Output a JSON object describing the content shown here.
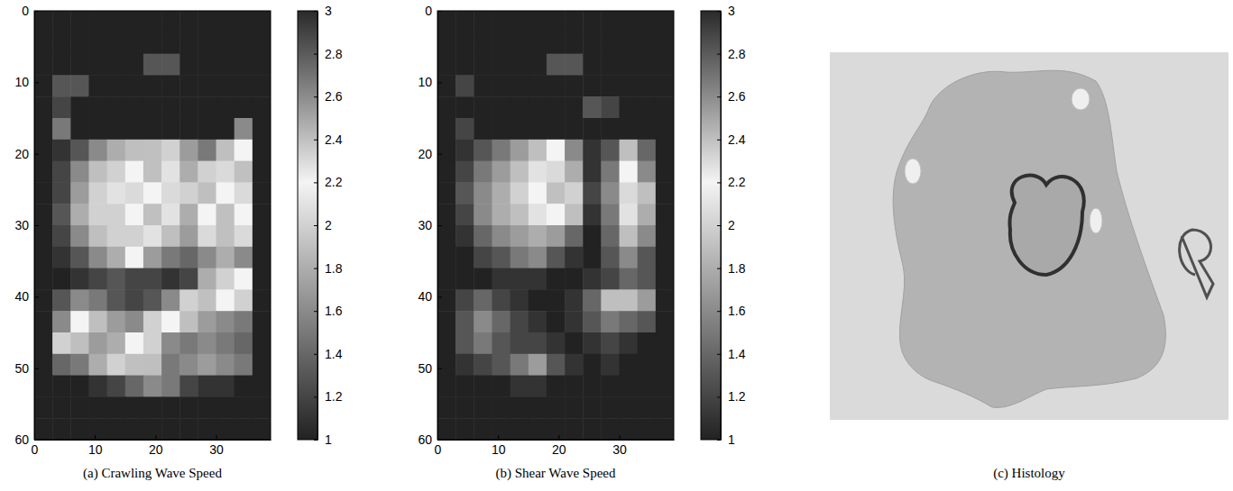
{
  "chart_data": [
    {
      "type": "heatmap",
      "title": "(a) Crawling Wave Speed",
      "x_bins": [
        0,
        3,
        6,
        9,
        12,
        15,
        18,
        21,
        24,
        27,
        30,
        33,
        36,
        39
      ],
      "y_bins": [
        0,
        3,
        6,
        9,
        12,
        15,
        18,
        21,
        24,
        27,
        30,
        33,
        36,
        39,
        42,
        45,
        48,
        51,
        54,
        57,
        60
      ],
      "xlim": [
        0,
        39
      ],
      "ylim": [
        0,
        60
      ],
      "xticks": [
        0,
        10,
        20,
        30
      ],
      "yticks": [
        0,
        10,
        20,
        30,
        40,
        50,
        60
      ],
      "cells": [
        [
          1,
          1,
          1,
          1,
          1,
          1,
          1,
          1,
          1,
          1,
          1,
          1,
          1
        ],
        [
          1,
          1,
          1,
          1,
          1,
          1,
          1,
          1,
          1,
          1,
          1,
          1,
          1
        ],
        [
          1,
          1,
          1,
          1,
          1,
          1,
          1.3,
          1.3,
          1,
          1,
          1,
          1,
          1
        ],
        [
          1,
          1.3,
          1.3,
          1,
          1,
          1,
          1,
          1,
          1,
          1,
          1,
          1,
          1
        ],
        [
          1,
          1.2,
          1,
          1,
          1,
          1,
          1,
          1,
          1,
          1,
          1,
          1,
          1
        ],
        [
          1,
          1.5,
          1,
          1,
          1,
          1,
          1,
          1,
          1,
          1,
          1,
          1.6,
          1
        ],
        [
          1,
          1.1,
          1.3,
          1.6,
          1.8,
          1.9,
          2.4,
          2.0,
          1.7,
          1.5,
          1.9,
          2.2,
          1
        ],
        [
          1,
          1.2,
          1.6,
          1.9,
          2.0,
          2.2,
          2.4,
          2.1,
          1.8,
          2.0,
          2.3,
          2.4,
          1
        ],
        [
          1,
          1.2,
          1.7,
          2.0,
          2.1,
          2.3,
          2.2,
          2.3,
          2.0,
          1.9,
          2.2,
          2.3,
          1
        ],
        [
          1,
          1.3,
          1.8,
          2.0,
          2.0,
          2.2,
          2.4,
          2.1,
          1.8,
          2.2,
          2.4,
          2.2,
          1
        ],
        [
          1,
          1.2,
          1.6,
          1.9,
          2.0,
          2.0,
          2.1,
          1.9,
          1.7,
          2.3,
          2.4,
          2.3,
          1
        ],
        [
          1,
          1.1,
          1.3,
          1.6,
          1.8,
          2.2,
          1.7,
          1.5,
          1.4,
          1.6,
          1.8,
          1.6,
          1
        ],
        [
          1,
          1,
          1.1,
          1.2,
          1.3,
          1.2,
          1.2,
          1.1,
          1.2,
          1.8,
          2.0,
          2.2,
          1
        ],
        [
          1,
          1.3,
          1.6,
          1.5,
          1.3,
          1.2,
          1.3,
          1.6,
          2.0,
          2.4,
          2.2,
          2.0,
          1
        ],
        [
          1,
          1.6,
          2.2,
          1.9,
          1.7,
          1.6,
          2.0,
          2.2,
          1.9,
          1.7,
          1.6,
          1.5,
          1
        ],
        [
          1,
          2.0,
          1.9,
          1.7,
          1.8,
          2.2,
          2.0,
          1.6,
          1.5,
          1.6,
          1.5,
          1.4,
          1
        ],
        [
          1,
          1.4,
          1.5,
          1.8,
          2.0,
          2.4,
          1.9,
          1.5,
          1.6,
          1.7,
          1.6,
          1.5,
          1
        ],
        [
          1,
          1,
          1,
          1.1,
          1.2,
          1.4,
          1.6,
          1.5,
          1.2,
          1.1,
          1.1,
          1,
          1
        ],
        [
          1,
          1,
          1,
          1,
          1,
          1,
          1,
          1,
          1,
          1,
          1,
          1,
          1
        ],
        [
          1,
          1,
          1,
          1,
          1,
          1,
          1,
          1,
          1,
          1,
          1,
          1,
          1
        ]
      ],
      "colorbar": {
        "range": [
          1,
          3
        ],
        "ticks": [
          1,
          1.2,
          1.4,
          1.6,
          1.8,
          2,
          2.2,
          2.4,
          2.6,
          2.8,
          3
        ]
      }
    },
    {
      "type": "heatmap",
      "title": "(b) Shear Wave Speed",
      "x_bins": [
        0,
        3,
        6,
        9,
        12,
        15,
        18,
        21,
        24,
        27,
        30,
        33,
        36,
        39
      ],
      "y_bins": [
        0,
        3,
        6,
        9,
        12,
        15,
        18,
        21,
        24,
        27,
        30,
        33,
        36,
        39,
        42,
        45,
        48,
        51,
        54,
        57,
        60
      ],
      "xlim": [
        0,
        39
      ],
      "ylim": [
        0,
        60
      ],
      "xticks": [
        0,
        10,
        20,
        30
      ],
      "yticks": [
        0,
        10,
        20,
        30,
        40,
        50,
        60
      ],
      "cells": [
        [
          1,
          1,
          1,
          1,
          1,
          1,
          1,
          1,
          1,
          1,
          1,
          1,
          1
        ],
        [
          1,
          1,
          1,
          1,
          1,
          1,
          1,
          1,
          1,
          1,
          1,
          1,
          1
        ],
        [
          1,
          1,
          1,
          1,
          1,
          1,
          1.3,
          1.3,
          1,
          1,
          1,
          1,
          1
        ],
        [
          1,
          1.2,
          1,
          1,
          1,
          1,
          1,
          1,
          1,
          1,
          1,
          1,
          1
        ],
        [
          1,
          1,
          1,
          1,
          1,
          1,
          1,
          1,
          1.3,
          1.2,
          1,
          1,
          1
        ],
        [
          1,
          1.2,
          1,
          1,
          1,
          1,
          1,
          1,
          1,
          1,
          1,
          1,
          1
        ],
        [
          1,
          1.1,
          1.3,
          1.5,
          1.7,
          1.9,
          2.2,
          1.6,
          1.1,
          1.3,
          1.9,
          1.4,
          1
        ],
        [
          1,
          1.2,
          1.5,
          1.7,
          1.9,
          2.1,
          2.3,
          1.8,
          1.1,
          1.5,
          2.2,
          1.6,
          1
        ],
        [
          1,
          1.3,
          1.6,
          1.8,
          2.0,
          2.2,
          2.4,
          2.0,
          1.2,
          1.6,
          2.3,
          1.9,
          1
        ],
        [
          1,
          1.2,
          1.6,
          1.8,
          1.9,
          2.1,
          2.2,
          1.9,
          1.1,
          1.5,
          2.1,
          1.8,
          1
        ],
        [
          1,
          1.1,
          1.4,
          1.6,
          1.7,
          1.8,
          1.7,
          1.4,
          1,
          1.4,
          1.9,
          1.6,
          1
        ],
        [
          1,
          1,
          1.2,
          1.3,
          1.5,
          1.6,
          1.3,
          1.1,
          1,
          1.3,
          1.6,
          1.3,
          1
        ],
        [
          1,
          1,
          1,
          1.1,
          1.1,
          1.1,
          1,
          1,
          1.1,
          1.2,
          1.4,
          1.3,
          1
        ],
        [
          1,
          1.2,
          1.4,
          1.2,
          1.1,
          1,
          1,
          1.1,
          1.4,
          1.9,
          1.9,
          1.7,
          1
        ],
        [
          1,
          1.3,
          1.6,
          1.4,
          1.2,
          1.1,
          1,
          1.1,
          1.3,
          1.5,
          1.4,
          1.3,
          1
        ],
        [
          1,
          1.3,
          1.5,
          1.3,
          1.2,
          1.2,
          1.1,
          1,
          1.1,
          1.2,
          1.1,
          1,
          1
        ],
        [
          1,
          1.1,
          1.2,
          1.3,
          1.5,
          1.7,
          1.3,
          1.1,
          1,
          1.1,
          1,
          1,
          1
        ],
        [
          1,
          1,
          1,
          1,
          1.1,
          1.1,
          1,
          1,
          1,
          1,
          1,
          1,
          1
        ],
        [
          1,
          1,
          1,
          1,
          1,
          1,
          1,
          1,
          1,
          1,
          1,
          1,
          1
        ],
        [
          1,
          1,
          1,
          1,
          1,
          1,
          1,
          1,
          1,
          1,
          1,
          1,
          1
        ]
      ],
      "colorbar": {
        "range": [
          1,
          3
        ],
        "ticks": [
          1,
          1.2,
          1.4,
          1.6,
          1.8,
          2,
          2.2,
          2.4,
          2.6,
          2.8,
          3
        ]
      }
    },
    {
      "type": "image",
      "title": "(c) Histology"
    }
  ]
}
